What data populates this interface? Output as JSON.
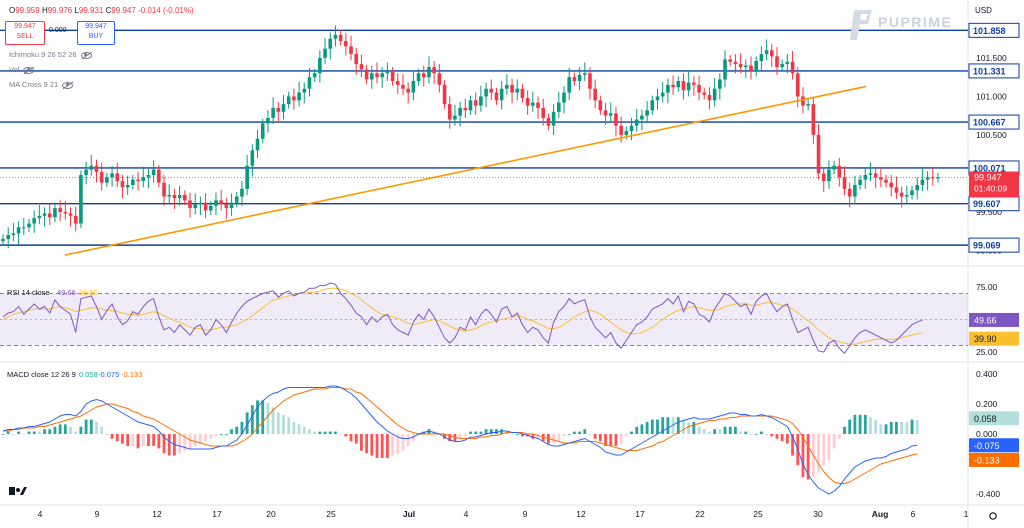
{
  "header": {
    "ohlc": {
      "o_label": "O",
      "o": "99.959",
      "h_label": "H",
      "h": "99.976",
      "l_label": "L",
      "l": "99.931",
      "c_label": "C",
      "c": "99.947",
      "change": "-0.014 (-0.01%)"
    },
    "sell": {
      "price": "99.947",
      "label": "SELL"
    },
    "buy": {
      "price": "99.947",
      "label": "BUY"
    },
    "spread": "0.000",
    "indicators": [
      {
        "label": "Ichimoku 9 26 52 26"
      },
      {
        "label": "Vol"
      },
      {
        "label": "MA Cross 9 21"
      }
    ],
    "currency": "USD",
    "brand": "PUPRIME"
  },
  "chart_data": [
    {
      "type": "line",
      "panel": "price",
      "title": "",
      "ylim": [
        98.85,
        102.2
      ],
      "y_ticks": [
        "101.500",
        "101.000",
        "100.500",
        "99.500",
        "99.000"
      ],
      "horizontal_levels": [
        101.858,
        101.331,
        100.667,
        100.071,
        99.607,
        99.069
      ],
      "level_labels": [
        "101.858",
        "101.331",
        "100.667",
        "100.071",
        "99.607",
        "99.069"
      ],
      "trendline": {
        "from": {
          "x": "Jun 6",
          "y": 98.94
        },
        "to": {
          "x": "Aug 2",
          "y": 101.13
        },
        "color": "#ff9800"
      },
      "x_labels": [
        "4",
        "9",
        "12",
        "17",
        "20",
        "25",
        "Jul",
        "4",
        "9",
        "12",
        "17",
        "22",
        "25",
        "30",
        "Aug",
        "6",
        "1"
      ],
      "series": [
        {
          "values": [
            99.15,
            99.2,
            99.22,
            99.3,
            99.3,
            99.35,
            99.42,
            99.45,
            99.48,
            99.43,
            99.55,
            99.5,
            99.48,
            99.45,
            99.35,
            99.98,
            100.05,
            100.1,
            100.02,
            99.88,
            99.95,
            100.0,
            99.9,
            99.82,
            99.85,
            99.92,
            99.9,
            99.95,
            99.98,
            100.05,
            99.88,
            99.7,
            99.72,
            99.68,
            99.72,
            99.65,
            99.55,
            99.6,
            99.62,
            99.52,
            99.58,
            99.65,
            99.6,
            99.55,
            99.62,
            99.7,
            99.8,
            100.1,
            100.3,
            100.45,
            100.65,
            100.72,
            100.85,
            100.8,
            100.9,
            101.0,
            100.95,
            101.05,
            101.1,
            101.25,
            101.3,
            101.5,
            101.62,
            101.75,
            101.8,
            101.72,
            101.65,
            101.55,
            101.42,
            101.35,
            101.22,
            101.3,
            101.25,
            101.3,
            101.32,
            101.2,
            101.15,
            101.1,
            101.05,
            101.2,
            101.3,
            101.25,
            101.38,
            101.3,
            101.15,
            100.9,
            100.7,
            100.75,
            100.85,
            100.82,
            100.95,
            100.88,
            101.0,
            101.1,
            101.05,
            100.95,
            101.1,
            101.15,
            101.05,
            101.1,
            100.98,
            100.88,
            100.92,
            100.85,
            100.72,
            100.62,
            100.8,
            100.92,
            101.05,
            101.25,
            101.2,
            101.28,
            101.3,
            101.1,
            100.95,
            100.82,
            100.75,
            100.78,
            100.62,
            100.5,
            100.55,
            100.62,
            100.7,
            100.75,
            100.82,
            100.95,
            101.0,
            101.05,
            101.15,
            101.12,
            101.2,
            101.08,
            101.18,
            101.15,
            101.05,
            101.02,
            100.95,
            101.1,
            101.22,
            101.48,
            101.45,
            101.42,
            101.38,
            101.4,
            101.32,
            101.46,
            101.55,
            101.6,
            101.52,
            101.38,
            101.42,
            101.45,
            101.3,
            101.0,
            100.88,
            100.9,
            100.5,
            100.0,
            99.9,
            100.05,
            100.1,
            99.95,
            99.8,
            99.7,
            99.85,
            99.92,
            99.98,
            100.0,
            99.95,
            99.92,
            99.88,
            99.82,
            99.75,
            99.7,
            99.72,
            99.78,
            99.85,
            99.92,
            99.95,
            99.94,
            99.947
          ]
        }
      ]
    },
    {
      "type": "line",
      "panel": "rsi",
      "title": "RSI 14 close",
      "legend_values": [
        "49.66",
        "39.90"
      ],
      "ylim": [
        22,
        78
      ],
      "y_ticks": [
        "75.00",
        "25.00"
      ],
      "band": [
        30,
        70
      ],
      "value_labels": [
        "49.66",
        "39.90"
      ],
      "series": [
        {
          "name": "RSI",
          "values": [
            52,
            55,
            56,
            60,
            54,
            58,
            62,
            58,
            60,
            55,
            65,
            60,
            57,
            54,
            40,
            66,
            67,
            68,
            60,
            50,
            57,
            62,
            52,
            46,
            49,
            56,
            54,
            60,
            64,
            66,
            52,
            42,
            44,
            40,
            46,
            42,
            38,
            44,
            46,
            38,
            42,
            50,
            46,
            40,
            48,
            55,
            60,
            64,
            66,
            68,
            70,
            71,
            72,
            67,
            70,
            72,
            68,
            70,
            71,
            74,
            74,
            76,
            76,
            78,
            77,
            70,
            66,
            61,
            55,
            52,
            46,
            52,
            48,
            52,
            54,
            46,
            42,
            40,
            38,
            48,
            54,
            50,
            58,
            52,
            44,
            36,
            32,
            36,
            44,
            42,
            52,
            46,
            54,
            58,
            54,
            48,
            58,
            60,
            52,
            55,
            46,
            40,
            44,
            42,
            36,
            32,
            48,
            56,
            60,
            66,
            62,
            64,
            65,
            52,
            44,
            40,
            36,
            40,
            32,
            28,
            34,
            40,
            46,
            48,
            52,
            58,
            60,
            62,
            66,
            62,
            68,
            56,
            64,
            62,
            54,
            52,
            48,
            58,
            64,
            70,
            68,
            64,
            60,
            62,
            54,
            64,
            68,
            70,
            62,
            56,
            60,
            62,
            50,
            40,
            42,
            44,
            34,
            26,
            25,
            32,
            34,
            28,
            24,
            30,
            36,
            40,
            42,
            40,
            38,
            36,
            34,
            32,
            34,
            38,
            42,
            46,
            48,
            49.66
          ]
        },
        {
          "name": "MA",
          "values": [
            50,
            52,
            54,
            55,
            56,
            57,
            58,
            58,
            58,
            58,
            59,
            60,
            59,
            58,
            56,
            57,
            58,
            59,
            59,
            58,
            57,
            57,
            56,
            55,
            54,
            54,
            53,
            54,
            55,
            56,
            55,
            53,
            51,
            49,
            48,
            46,
            44,
            43,
            43,
            42,
            42,
            43,
            44,
            44,
            45,
            46,
            48,
            50,
            53,
            56,
            59,
            62,
            65,
            66,
            67,
            68,
            69,
            70,
            70,
            71,
            71,
            72,
            73,
            74,
            74,
            73,
            72,
            70,
            68,
            65,
            62,
            59,
            56,
            54,
            53,
            52,
            51,
            49,
            47,
            46,
            47,
            48,
            49,
            50,
            49,
            47,
            45,
            43,
            42,
            41,
            42,
            43,
            45,
            47,
            48,
            49,
            50,
            51,
            52,
            53,
            52,
            50,
            49,
            47,
            45,
            43,
            43,
            44,
            46,
            49,
            52,
            54,
            56,
            57,
            56,
            54,
            51,
            48,
            45,
            42,
            40,
            39,
            39,
            40,
            42,
            44,
            47,
            50,
            53,
            55,
            57,
            58,
            59,
            60,
            59,
            58,
            57,
            57,
            58,
            60,
            61,
            62,
            62,
            62,
            61,
            61,
            62,
            63,
            63,
            62,
            61,
            60,
            58,
            55,
            52,
            49,
            46,
            42,
            39,
            36,
            34,
            33,
            32,
            31,
            31,
            32,
            33,
            34,
            35,
            35,
            35,
            35,
            35,
            36,
            37,
            38,
            39,
            39.9
          ]
        }
      ]
    },
    {
      "type": "line",
      "panel": "macd",
      "title": "MACD close 12 26 9",
      "legend_values": [
        "0.058",
        "-0.075",
        "-0.133"
      ],
      "ylim": [
        -0.44,
        0.44
      ],
      "y_ticks": [
        "0.400",
        "0.200",
        "0.000",
        "-0.400"
      ],
      "value_labels": [
        "0.058",
        "-0.075",
        "-0.133"
      ],
      "series": [
        {
          "name": "MACD",
          "values": [
            0.02,
            0.03,
            0.03,
            0.04,
            0.04,
            0.05,
            0.05,
            0.06,
            0.07,
            0.08,
            0.1,
            0.12,
            0.13,
            0.13,
            0.12,
            0.15,
            0.2,
            0.22,
            0.23,
            0.22,
            0.2,
            0.18,
            0.16,
            0.14,
            0.12,
            0.1,
            0.08,
            0.07,
            0.06,
            0.05,
            0.02,
            -0.02,
            -0.05,
            -0.07,
            -0.08,
            -0.09,
            -0.1,
            -0.1,
            -0.1,
            -0.1,
            -0.1,
            -0.09,
            -0.08,
            -0.08,
            -0.06,
            -0.04,
            0.0,
            0.06,
            0.12,
            0.18,
            0.22,
            0.25,
            0.27,
            0.28,
            0.3,
            0.31,
            0.31,
            0.31,
            0.31,
            0.31,
            0.31,
            0.31,
            0.31,
            0.32,
            0.32,
            0.31,
            0.29,
            0.27,
            0.24,
            0.2,
            0.16,
            0.12,
            0.08,
            0.05,
            0.02,
            0.0,
            -0.02,
            -0.03,
            -0.03,
            -0.02,
            0.0,
            0.01,
            0.02,
            0.01,
            0.0,
            -0.02,
            -0.04,
            -0.05,
            -0.05,
            -0.04,
            -0.02,
            -0.02,
            -0.01,
            0.0,
            0.01,
            0.01,
            0.02,
            0.02,
            0.01,
            0.01,
            0.0,
            -0.01,
            -0.02,
            -0.03,
            -0.05,
            -0.07,
            -0.08,
            -0.08,
            -0.07,
            -0.06,
            -0.05,
            -0.04,
            -0.03,
            -0.05,
            -0.07,
            -0.09,
            -0.12,
            -0.13,
            -0.14,
            -0.14,
            -0.12,
            -0.1,
            -0.08,
            -0.06,
            -0.04,
            -0.02,
            0.0,
            0.02,
            0.04,
            0.06,
            0.08,
            0.09,
            0.1,
            0.11,
            0.1,
            0.1,
            0.1,
            0.11,
            0.12,
            0.13,
            0.14,
            0.14,
            0.13,
            0.13,
            0.12,
            0.12,
            0.13,
            0.12,
            0.11,
            0.09,
            0.07,
            0.05,
            -0.02,
            -0.1,
            -0.2,
            -0.27,
            -0.32,
            -0.36,
            -0.38,
            -0.4,
            -0.38,
            -0.35,
            -0.3,
            -0.26,
            -0.22,
            -0.2,
            -0.18,
            -0.17,
            -0.16,
            -0.16,
            -0.15,
            -0.13,
            -0.12,
            -0.11,
            -0.1,
            -0.08,
            -0.075
          ]
        },
        {
          "name": "Signal",
          "values": [
            0.02,
            0.02,
            0.03,
            0.03,
            0.04,
            0.04,
            0.04,
            0.05,
            0.05,
            0.06,
            0.07,
            0.08,
            0.09,
            0.1,
            0.11,
            0.12,
            0.14,
            0.16,
            0.18,
            0.19,
            0.2,
            0.2,
            0.19,
            0.18,
            0.17,
            0.15,
            0.14,
            0.12,
            0.11,
            0.1,
            0.08,
            0.06,
            0.04,
            0.02,
            0.0,
            -0.02,
            -0.04,
            -0.05,
            -0.06,
            -0.07,
            -0.08,
            -0.08,
            -0.08,
            -0.08,
            -0.08,
            -0.07,
            -0.05,
            -0.03,
            0.0,
            0.04,
            0.08,
            0.12,
            0.16,
            0.19,
            0.22,
            0.24,
            0.26,
            0.27,
            0.28,
            0.29,
            0.3,
            0.3,
            0.3,
            0.31,
            0.31,
            0.31,
            0.3,
            0.3,
            0.28,
            0.27,
            0.24,
            0.21,
            0.18,
            0.15,
            0.12,
            0.09,
            0.06,
            0.04,
            0.02,
            0.01,
            0.0,
            0.0,
            0.0,
            0.0,
            0.0,
            0.0,
            -0.01,
            -0.02,
            -0.03,
            -0.03,
            -0.03,
            -0.03,
            -0.02,
            -0.02,
            -0.01,
            -0.01,
            0.0,
            0.01,
            0.01,
            0.01,
            0.01,
            0.0,
            0.0,
            -0.01,
            -0.02,
            -0.03,
            -0.04,
            -0.05,
            -0.06,
            -0.06,
            -0.06,
            -0.05,
            -0.05,
            -0.05,
            -0.05,
            -0.06,
            -0.07,
            -0.08,
            -0.09,
            -0.1,
            -0.11,
            -0.11,
            -0.11,
            -0.1,
            -0.09,
            -0.08,
            -0.06,
            -0.05,
            -0.03,
            -0.01,
            0.01,
            0.03,
            0.05,
            0.06,
            0.07,
            0.08,
            0.09,
            0.09,
            0.1,
            0.1,
            0.11,
            0.11,
            0.12,
            0.12,
            0.12,
            0.12,
            0.12,
            0.12,
            0.12,
            0.11,
            0.1,
            0.09,
            0.07,
            0.03,
            -0.02,
            -0.08,
            -0.14,
            -0.2,
            -0.25,
            -0.29,
            -0.32,
            -0.33,
            -0.33,
            -0.32,
            -0.3,
            -0.28,
            -0.26,
            -0.24,
            -0.22,
            -0.2,
            -0.19,
            -0.18,
            -0.17,
            -0.16,
            -0.15,
            -0.14,
            -0.133
          ]
        }
      ]
    }
  ]
}
